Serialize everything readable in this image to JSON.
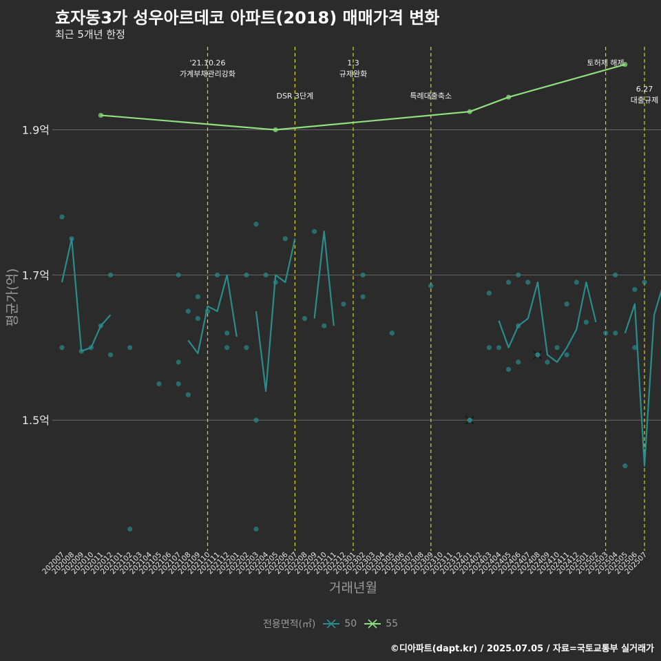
{
  "title": "효자동3가 성우아르데코 아파트(2018) 매매가격 변화",
  "subtitle": "최근 5개년 한정",
  "caption": "©디아파트(dapt.kr) / 2025.07.05 / 자료=국토교통부 실거래가",
  "colors": {
    "background": "#2b2b2b",
    "series50": "#2a8c8c",
    "series55": "#90e080",
    "vline": "#d8d820",
    "grid": "#666666"
  },
  "chart_data": {
    "type": "line",
    "xlabel": "거래년월",
    "ylabel": "평균가(억)",
    "ylim": [
      1.32,
      2.02
    ],
    "yticks": [
      1.5,
      1.7,
      1.9
    ],
    "ytick_labels": [
      "1.5억",
      "1.7억",
      "1.9억"
    ],
    "categories": [
      "202007",
      "202008",
      "202009",
      "202010",
      "202011",
      "202012",
      "202101",
      "202102",
      "202103",
      "202104",
      "202105",
      "202106",
      "202107",
      "202108",
      "202109",
      "202110",
      "202111",
      "202112",
      "202201",
      "202202",
      "202203",
      "202204",
      "202205",
      "202206",
      "202207",
      "202208",
      "202209",
      "202210",
      "202211",
      "202212",
      "202301",
      "202302",
      "202303",
      "202304",
      "202305",
      "202306",
      "202307",
      "202308",
      "202309",
      "202310",
      "202311",
      "202312",
      "202401",
      "202402",
      "202403",
      "202404",
      "202405",
      "202406",
      "202407",
      "202408",
      "202409",
      "202410",
      "202411",
      "202412",
      "202501",
      "202502",
      "202503",
      "202504",
      "202505",
      "202506",
      "202507"
    ],
    "series": [
      {
        "name": "50",
        "color": "#2a8c8c",
        "line": [
          [
            0,
            1.69
          ],
          [
            1,
            1.75
          ],
          [
            2,
            1.595
          ],
          [
            3,
            1.6
          ],
          [
            4,
            1.63
          ],
          [
            5,
            1.645
          ],
          [
            null,
            null
          ],
          [
            13,
            1.61
          ],
          [
            14,
            1.592
          ],
          [
            15,
            1.657
          ],
          [
            16,
            1.65
          ],
          [
            17,
            1.7
          ],
          [
            18,
            1.615
          ],
          [
            null,
            null
          ],
          [
            20,
            1.65
          ],
          [
            21,
            1.54
          ],
          [
            22,
            1.7
          ],
          [
            23,
            1.69
          ],
          [
            24,
            1.75
          ],
          [
            null,
            null
          ],
          [
            26,
            1.64
          ],
          [
            27,
            1.76
          ],
          [
            28,
            1.63
          ],
          [
            null,
            null
          ],
          [
            45,
            1.637
          ],
          [
            46,
            1.6
          ],
          [
            47,
            1.63
          ],
          [
            48,
            1.64
          ],
          [
            49,
            1.69
          ],
          [
            50,
            1.59
          ],
          [
            51,
            1.58
          ],
          [
            52,
            1.6
          ],
          [
            53,
            1.625
          ],
          [
            54,
            1.69
          ],
          [
            55,
            1.635
          ],
          [
            null,
            null
          ],
          [
            58,
            1.62
          ],
          [
            59,
            1.66
          ],
          [
            60,
            1.437
          ],
          [
            61,
            1.645
          ],
          [
            62,
            1.69
          ]
        ],
        "points": [
          [
            0,
            1.78
          ],
          [
            0,
            1.6
          ],
          [
            1,
            1.75
          ],
          [
            2,
            1.595
          ],
          [
            3,
            1.6
          ],
          [
            4,
            1.63
          ],
          [
            5,
            1.7
          ],
          [
            5,
            1.59
          ],
          [
            7,
            1.6
          ],
          [
            7,
            1.35
          ],
          [
            10,
            1.55
          ],
          [
            12,
            1.7
          ],
          [
            12,
            1.58
          ],
          [
            12,
            1.55
          ],
          [
            13,
            1.65
          ],
          [
            13,
            1.535
          ],
          [
            14,
            1.67
          ],
          [
            14,
            1.64
          ],
          [
            15,
            1.65
          ],
          [
            16,
            1.7
          ],
          [
            17,
            1.62
          ],
          [
            17,
            1.6
          ],
          [
            19,
            1.7
          ],
          [
            19,
            1.6
          ],
          [
            20,
            1.77
          ],
          [
            20,
            1.5
          ],
          [
            20,
            1.35
          ],
          [
            21,
            1.7
          ],
          [
            22,
            1.69
          ],
          [
            23,
            1.75
          ],
          [
            25,
            1.64
          ],
          [
            26,
            1.76
          ],
          [
            27,
            1.63
          ],
          [
            29,
            1.66
          ],
          [
            31,
            1.7
          ],
          [
            31,
            1.67
          ],
          [
            34,
            1.62
          ],
          [
            38,
            1.685
          ],
          [
            44,
            1.675
          ],
          [
            44,
            1.6
          ],
          [
            45,
            1.6
          ],
          [
            46,
            1.69
          ],
          [
            46,
            1.57
          ],
          [
            47,
            1.7
          ],
          [
            47,
            1.63
          ],
          [
            47,
            1.58
          ],
          [
            48,
            1.69
          ],
          [
            50,
            1.58
          ],
          [
            51,
            1.6
          ],
          [
            52,
            1.66
          ],
          [
            52,
            1.59
          ],
          [
            53,
            1.69
          ],
          [
            54,
            1.635
          ],
          [
            56,
            1.62
          ],
          [
            57,
            1.7
          ],
          [
            57,
            1.62
          ],
          [
            58,
            1.437
          ],
          [
            59,
            1.6
          ],
          [
            59,
            1.68
          ],
          [
            60,
            1.69
          ]
        ],
        "crosses": [
          [
            42,
            1.5
          ],
          [
            49,
            1.59
          ]
        ]
      },
      {
        "name": "55",
        "color": "#90e080",
        "line": [
          [
            4,
            1.92
          ],
          [
            22,
            1.9
          ],
          [
            42,
            1.925
          ],
          [
            46,
            1.945
          ],
          [
            58,
            1.99
          ]
        ],
        "points": [
          [
            4,
            1.92
          ],
          [
            22,
            1.9
          ],
          [
            42,
            1.925
          ],
          [
            46,
            1.945
          ],
          [
            58,
            1.99
          ]
        ],
        "crosses": []
      }
    ],
    "events": [
      {
        "x": 15,
        "lines": [
          "'21.10.26",
          "가계부채관리강화"
        ],
        "row": 0
      },
      {
        "x": 24,
        "lines": [
          "DSR 3단계"
        ],
        "row": 1
      },
      {
        "x": 30,
        "lines": [
          "1.3",
          "규제완화"
        ],
        "row": 0
      },
      {
        "x": 38,
        "lines": [
          "특례대출축소"
        ],
        "row": 1
      },
      {
        "x": 56,
        "lines": [
          "토허제 해제"
        ],
        "row": 0
      },
      {
        "x": 60,
        "lines": [
          "6.27",
          "대출규제"
        ],
        "row": 2
      }
    ],
    "legend": {
      "title": "전용면적(㎡)",
      "entries": [
        "50",
        "55"
      ]
    }
  }
}
